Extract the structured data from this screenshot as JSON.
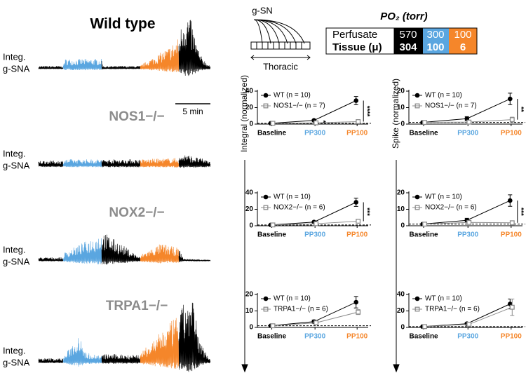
{
  "traces": [
    {
      "label": "Wild type",
      "ylabel": [
        "Integ.",
        "g-SNA"
      ]
    },
    {
      "label": "NOS1−/−",
      "ylabel": [
        "Integ.",
        "g-SNA"
      ]
    },
    {
      "label": "NOX2−/−",
      "ylabel": [
        "Integ.",
        "g-SNA"
      ]
    },
    {
      "label": "TRPA1−/−",
      "ylabel": [
        "Integ.",
        "g-SNA"
      ]
    }
  ],
  "scale_bar": "5 min",
  "schematic": {
    "label": "g-SN",
    "axis": "Thoracic"
  },
  "po2_table": {
    "title": "PO₂ (torr)",
    "rows": [
      [
        "Perfusate",
        "570",
        "300",
        "100"
      ],
      [
        "Tissue (μ)",
        "304",
        "100",
        "6"
      ]
    ]
  },
  "chart_data": [
    {
      "type": "line",
      "ylabel": "Integral (normalized)",
      "categories": [
        "Baseline",
        "PP300",
        "PP100"
      ],
      "ylim": [
        0,
        40
      ],
      "yticks": [
        0,
        20,
        40
      ],
      "refline": 1,
      "series": [
        {
          "name": "WT (n = 10)",
          "color": "#000000",
          "values": [
            1,
            4.5,
            28.5
          ],
          "errors": [
            0.3,
            1,
            5
          ]
        },
        {
          "name": "NOS1−/− (n = 7)",
          "color": "#8c8c8c",
          "values": [
            1,
            1.5,
            3
          ],
          "errors": [
            0.2,
            0.5,
            1
          ]
        }
      ],
      "annotations": [
        "****",
        "*"
      ]
    },
    {
      "type": "line",
      "ylabel": "Spike (normalized)",
      "categories": [
        "Baseline",
        "PP300",
        "PP100"
      ],
      "ylim": [
        0,
        20
      ],
      "yticks": [
        0,
        10,
        20
      ],
      "refline": 1,
      "series": [
        {
          "name": "WT (n = 10)",
          "color": "#000000",
          "values": [
            1,
            3.3,
            15.3
          ],
          "errors": [
            0.2,
            1.2,
            3.5
          ]
        },
        {
          "name": "NOS1−/− (n = 7)",
          "color": "#8c8c8c",
          "values": [
            1,
            1.2,
            2.7
          ],
          "errors": [
            0.2,
            0.3,
            1.5
          ]
        }
      ],
      "annotations": [
        "**"
      ]
    },
    {
      "type": "line",
      "categories": [
        "Baseline",
        "PP300",
        "PP100"
      ],
      "ylim": [
        0,
        40
      ],
      "yticks": [
        0,
        20,
        40
      ],
      "refline": 1,
      "series": [
        {
          "name": "WT (n = 10)",
          "color": "#000000",
          "values": [
            1,
            4.5,
            28.5
          ],
          "errors": [
            0.3,
            1,
            5
          ]
        },
        {
          "name": "NOX2−/− (n = 6)",
          "color": "#8c8c8c",
          "values": [
            1,
            2.5,
            5.5
          ],
          "errors": [
            0.3,
            0.8,
            1.5
          ]
        }
      ],
      "annotations": [
        "***"
      ]
    },
    {
      "type": "line",
      "categories": [
        "Baseline",
        "PP300",
        "PP100"
      ],
      "ylim": [
        0,
        20
      ],
      "yticks": [
        0,
        10,
        20
      ],
      "refline": 1,
      "series": [
        {
          "name": "WT (n = 10)",
          "color": "#000000",
          "values": [
            1,
            3.3,
            15.3
          ],
          "errors": [
            0.2,
            1.2,
            3.5
          ]
        },
        {
          "name": "NOX2−/− (n = 6)",
          "color": "#8c8c8c",
          "values": [
            1,
            2,
            1.8
          ],
          "errors": [
            0.2,
            1,
            0.5
          ]
        }
      ],
      "annotations": [
        "***"
      ]
    },
    {
      "type": "line",
      "categories": [
        "Baseline",
        "PP300",
        "PP100"
      ],
      "ylim": [
        0,
        20
      ],
      "yticks": [
        0,
        10,
        20
      ],
      "refline": 1,
      "series": [
        {
          "name": "WT (n = 10)",
          "color": "#000000",
          "values": [
            1,
            3.5,
            15.3
          ],
          "errors": [
            0.3,
            1,
            3.5
          ]
        },
        {
          "name": "TRPA1−/− (n = 6)",
          "color": "#8c8c8c",
          "values": [
            1,
            2.8,
            9.3
          ],
          "errors": [
            0.2,
            0.8,
            1.5
          ]
        }
      ]
    },
    {
      "type": "line",
      "categories": [
        "Baseline",
        "PP300",
        "PP100"
      ],
      "ylim": [
        0,
        40
      ],
      "yticks": [
        0,
        20,
        40
      ],
      "refline": 1,
      "series": [
        {
          "name": "WT (n = 10)",
          "color": "#000000",
          "values": [
            1,
            4.5,
            28.5
          ],
          "errors": [
            0.3,
            1,
            6
          ]
        },
        {
          "name": "TRPA1−/− (n = 6)",
          "color": "#8c8c8c",
          "values": [
            1,
            3.8,
            24.5
          ],
          "errors": [
            0.2,
            1,
            10
          ]
        }
      ]
    }
  ]
}
